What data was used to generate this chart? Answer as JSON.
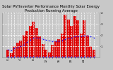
{
  "title": "Solar PV/Inverter Performance Monthly Solar Energy Production Running Average",
  "bar_values": [
    70,
    40,
    100,
    130,
    150,
    200,
    240,
    280,
    320,
    260,
    190,
    120,
    70,
    45,
    110,
    145,
    160,
    215,
    380,
    340,
    280,
    370,
    330,
    210,
    330,
    200,
    100,
    70
  ],
  "running_avg": [
    70,
    60,
    80,
    90,
    100,
    115,
    135,
    155,
    175,
    175,
    172,
    165,
    155,
    148,
    145,
    145,
    146,
    150,
    165,
    172,
    174,
    185,
    190,
    188,
    195,
    193,
    185,
    178
  ],
  "low_markers": [
    5,
    5,
    5,
    5,
    5,
    5,
    5,
    5,
    5,
    5,
    5,
    5,
    5,
    5,
    5,
    5,
    5,
    5,
    5,
    5,
    5,
    5,
    5,
    5,
    5,
    5,
    5,
    5
  ],
  "bar_color": "#DD0000",
  "line_color": "#2222FF",
  "marker_color": "#2222FF",
  "bg_color": "#C8C8C8",
  "plot_bg": "#C8C8C8",
  "grid_color": "#FFFFFF",
  "ylim": [
    0,
    400
  ],
  "ytick_vals": [
    100,
    200,
    300,
    400
  ],
  "ytick_labels": [
    "1",
    "2",
    "3",
    "4"
  ],
  "title_fontsize": 3.8,
  "tick_fontsize": 3.0,
  "n_bars": 28
}
